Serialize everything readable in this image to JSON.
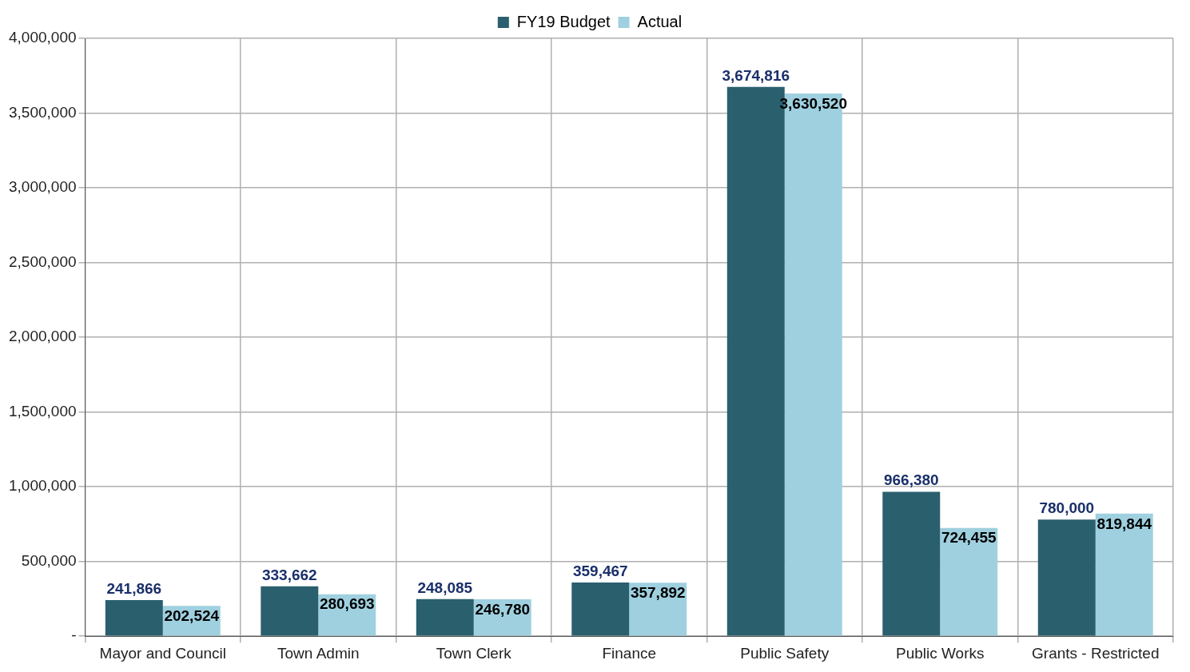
{
  "chart_data": {
    "type": "bar",
    "categories": [
      "Mayor and Council",
      "Town Admin",
      "Town Clerk",
      "Finance",
      "Public Safety",
      "Public Works",
      "Grants - Restricted"
    ],
    "series": [
      {
        "name": "FY19 Budget",
        "color": "#2a5f6e",
        "values": [
          241866,
          333662,
          248085,
          359467,
          3674816,
          966380,
          780000
        ],
        "value_labels": [
          "241,866",
          "333,662",
          "248,085",
          "359,467",
          "3,674,816",
          "966,380",
          "780,000"
        ]
      },
      {
        "name": "Actual",
        "color": "#9fd0e0",
        "values": [
          202524,
          280693,
          246780,
          357892,
          3630520,
          724455,
          819844
        ],
        "value_labels": [
          "202,524",
          "280,693",
          "246,780",
          "357,892",
          "3,630,520",
          "724,455",
          "819,844"
        ]
      }
    ],
    "ylim": [
      0,
      4000000
    ],
    "yticks": [
      {
        "value": 0,
        "label": "-"
      },
      {
        "value": 500000,
        "label": "500,000"
      },
      {
        "value": 1000000,
        "label": "1,000,000"
      },
      {
        "value": 1500000,
        "label": "1,500,000"
      },
      {
        "value": 2000000,
        "label": "2,000,000"
      },
      {
        "value": 2500000,
        "label": "2,500,000"
      },
      {
        "value": 3000000,
        "label": "3,000,000"
      },
      {
        "value": 3500000,
        "label": "3,500,000"
      },
      {
        "value": 4000000,
        "label": "4,000,000"
      }
    ],
    "grid": true,
    "legend": "top"
  }
}
